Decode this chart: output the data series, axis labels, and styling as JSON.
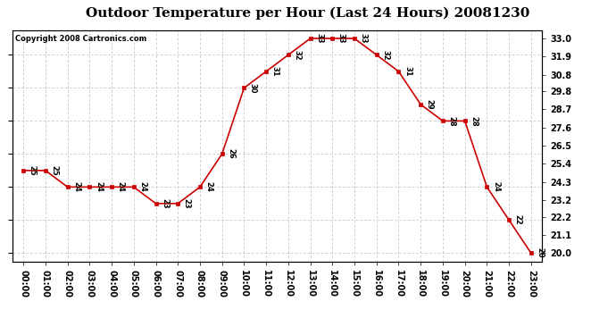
{
  "title": "Outdoor Temperature per Hour (Last 24 Hours) 20081230",
  "copyright_text": "Copyright 2008 Cartronics.com",
  "hours": [
    "00:00",
    "01:00",
    "02:00",
    "03:00",
    "04:00",
    "05:00",
    "06:00",
    "07:00",
    "08:00",
    "09:00",
    "10:00",
    "11:00",
    "12:00",
    "13:00",
    "14:00",
    "15:00",
    "16:00",
    "17:00",
    "18:00",
    "19:00",
    "20:00",
    "21:00",
    "22:00",
    "23:00"
  ],
  "temps": [
    25,
    25,
    24,
    24,
    24,
    24,
    23,
    23,
    24,
    26,
    30,
    31,
    32,
    33,
    33,
    33,
    32,
    31,
    29,
    28,
    28,
    24,
    22,
    20
  ],
  "line_color": "#cc0000",
  "marker_color": "#cc0000",
  "grid_color": "#bbbbbb",
  "background_color": "#ffffff",
  "ylim": [
    19.5,
    33.5
  ],
  "yticks_right": [
    20.0,
    21.1,
    22.2,
    23.2,
    24.3,
    25.4,
    26.5,
    27.6,
    28.7,
    29.8,
    30.8,
    31.9,
    33.0
  ],
  "title_fontsize": 11,
  "annotation_fontsize": 6,
  "tick_fontsize": 7,
  "copyright_fontsize": 6
}
